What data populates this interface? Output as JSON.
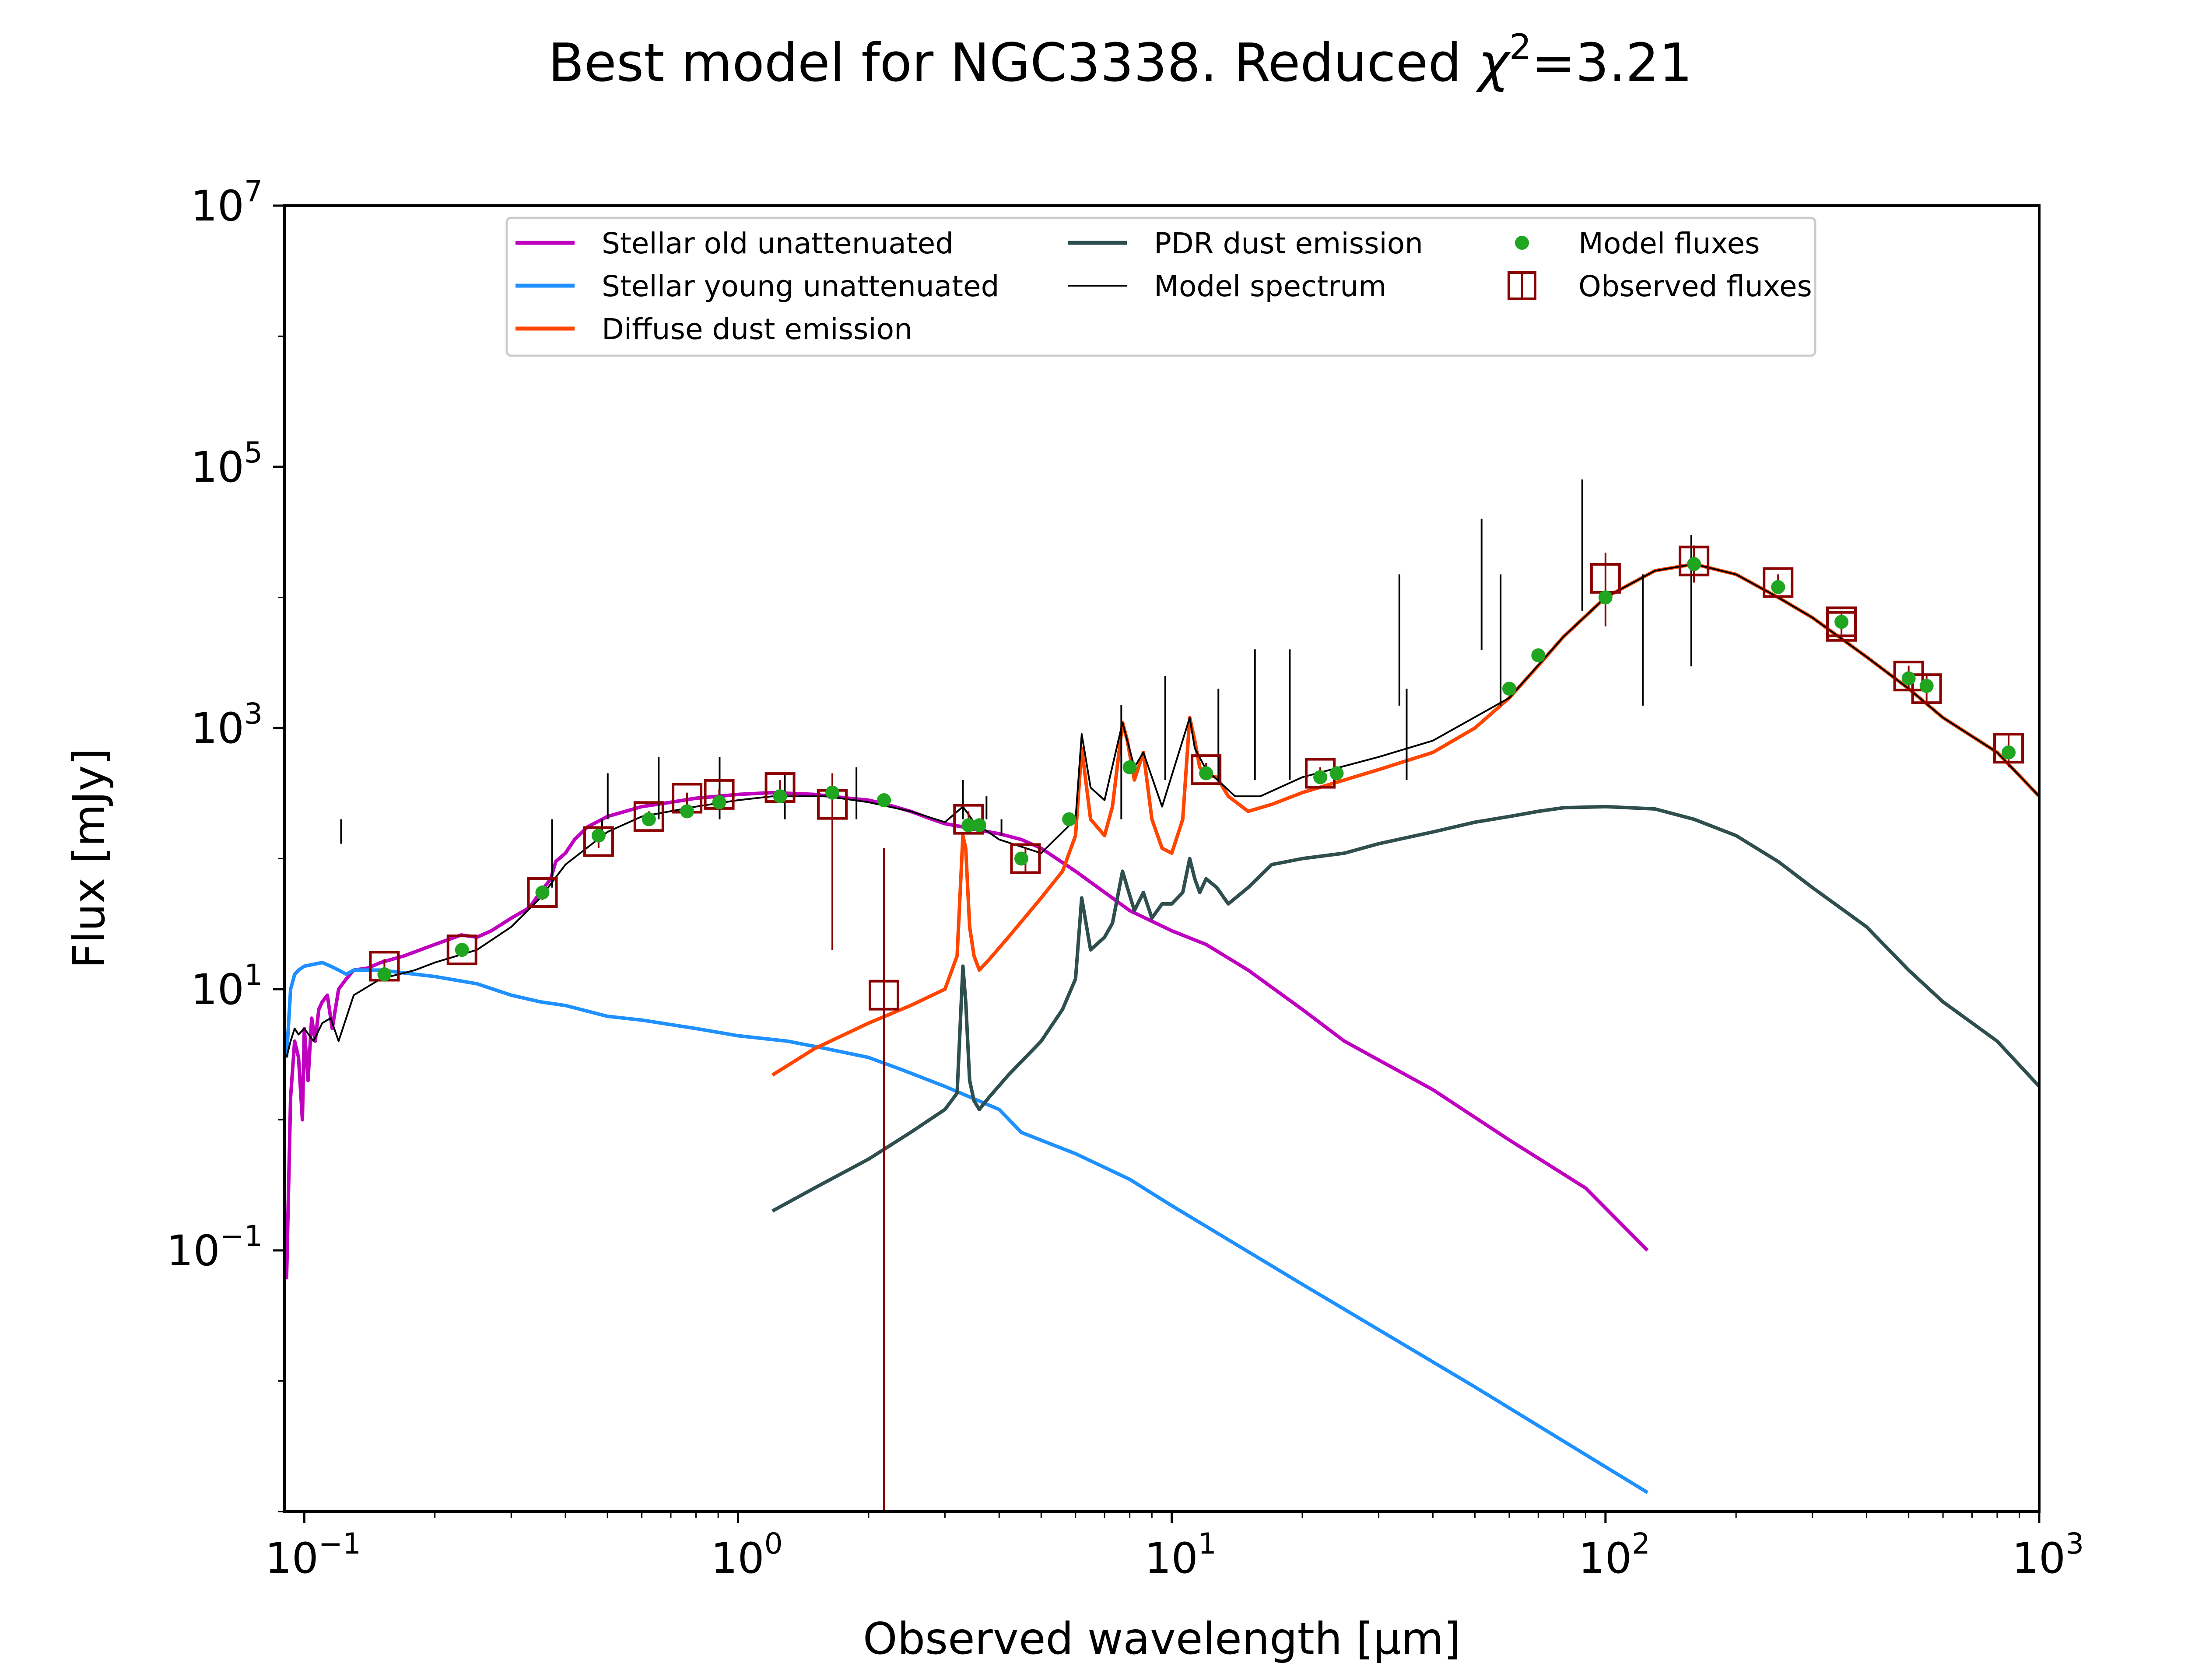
{
  "title": "Best model for NGC3338. Reduced χ²=3.21",
  "title_parts": {
    "prefix": "Best model for NGC3338. Reduced ",
    "chi": "χ",
    "sup": "2",
    "suffix": "=3.21"
  },
  "chart_data": {
    "type": "line",
    "xlabel": "Observed wavelength [μm]",
    "ylabel": "Flux [mJy]",
    "xscale": "log",
    "yscale": "log",
    "xlim": [
      0.09,
      1000
    ],
    "ylim": [
      0.001,
      10000000
    ],
    "grid": false,
    "legend_position": "top-center",
    "x_ticks": [
      {
        "value": 0.1,
        "base": "10",
        "exp": "−1"
      },
      {
        "value": 1,
        "base": "10",
        "exp": "0"
      },
      {
        "value": 10,
        "base": "10",
        "exp": "1"
      },
      {
        "value": 100,
        "base": "10",
        "exp": "2"
      },
      {
        "value": 1000,
        "base": "10",
        "exp": "3"
      }
    ],
    "y_ticks": [
      {
        "value": 0.1,
        "base": "10",
        "exp": "−1"
      },
      {
        "value": 10,
        "base": "10",
        "exp": "1"
      },
      {
        "value": 1000,
        "base": "10",
        "exp": "3"
      },
      {
        "value": 100000,
        "base": "10",
        "exp": "5"
      },
      {
        "value": 10000000,
        "base": "10",
        "exp": "7"
      }
    ],
    "colors": {
      "old": "#bf00bf",
      "young": "#1e90ff",
      "dust": "#ff4500",
      "pdr": "#2f4f4f",
      "model": "#000000",
      "model_fluxes": "#1fa51f",
      "observed": "#8b0000"
    },
    "legend": [
      {
        "label": "Stellar old unattenuated",
        "kind": "line",
        "color_key": "old"
      },
      {
        "label": "Stellar young unattenuated",
        "kind": "line",
        "color_key": "young"
      },
      {
        "label": "Diffuse dust emission",
        "kind": "line",
        "color_key": "dust"
      },
      {
        "label": "PDR dust emission",
        "kind": "line",
        "color_key": "pdr"
      },
      {
        "label": "Model spectrum",
        "kind": "thinline",
        "color_key": "model"
      },
      {
        "label": "Model fluxes",
        "kind": "dot",
        "color_key": "model_fluxes"
      },
      {
        "label": "Observed fluxes",
        "kind": "square",
        "color_key": "observed"
      }
    ],
    "series": [
      {
        "name": "Stellar old unattenuated",
        "color_key": "old",
        "x": [
          0.091,
          0.093,
          0.095,
          0.097,
          0.099,
          0.1,
          0.102,
          0.104,
          0.106,
          0.108,
          0.11,
          0.113,
          0.116,
          0.12,
          0.125,
          0.13,
          0.14,
          0.15,
          0.17,
          0.2,
          0.23,
          0.25,
          0.27,
          0.3,
          0.33,
          0.35,
          0.37,
          0.38,
          0.4,
          0.42,
          0.45,
          0.5,
          0.55,
          0.6,
          0.7,
          0.8,
          0.9,
          1.0,
          1.2,
          1.5,
          1.8,
          2.0,
          2.2,
          2.5,
          2.8,
          3.0,
          3.3,
          3.6,
          4.0,
          4.5,
          5.0,
          6.0,
          8.0,
          10.0,
          12.0,
          15.0,
          20.0,
          25.0,
          40.0,
          60.0,
          90.0,
          125.0
        ],
        "y": [
          0.06,
          1.5,
          4.0,
          3.0,
          1.0,
          5.0,
          2.0,
          6.0,
          4.0,
          7.0,
          8.0,
          9.0,
          5.0,
          10.0,
          12.0,
          14.0,
          14.5,
          16.0,
          18.0,
          22.0,
          26.0,
          25.0,
          28.0,
          35.0,
          42.0,
          55.0,
          70.0,
          95.0,
          110.0,
          140.0,
          175.0,
          210.0,
          230.0,
          250.0,
          270.0,
          290.0,
          300.0,
          310.0,
          320.0,
          310.0,
          290.0,
          280.0,
          260.0,
          230.0,
          200.0,
          185.0,
          175.0,
          165.0,
          155.0,
          140.0,
          120.0,
          80.0,
          40.0,
          28.0,
          22.0,
          14.0,
          7.0,
          4.0,
          1.7,
          0.7,
          0.3,
          0.1
        ]
      },
      {
        "name": "Stellar young unattenuated",
        "color_key": "young",
        "x": [
          0.091,
          0.093,
          0.095,
          0.097,
          0.1,
          0.105,
          0.11,
          0.115,
          0.12,
          0.125,
          0.13,
          0.15,
          0.2,
          0.25,
          0.3,
          0.35,
          0.4,
          0.5,
          0.6,
          0.8,
          1.0,
          1.3,
          1.6,
          2.0,
          2.4,
          3.0,
          4.0,
          4.5,
          6.0,
          8.0,
          10.0,
          20.0,
          50.0,
          100.0,
          125.0
        ],
        "y": [
          3.0,
          10.0,
          13.0,
          14.0,
          15.0,
          15.5,
          16.0,
          15.0,
          14.0,
          13.0,
          14.0,
          14.0,
          12.5,
          11.0,
          9.0,
          8.0,
          7.5,
          6.2,
          5.8,
          5.0,
          4.4,
          4.0,
          3.5,
          3.0,
          2.4,
          1.8,
          1.2,
          0.8,
          0.55,
          0.35,
          0.22,
          0.055,
          0.009,
          0.0022,
          0.0014
        ]
      },
      {
        "name": "Diffuse dust emission",
        "color_key": "dust",
        "x": [
          1.2,
          1.5,
          2.0,
          2.5,
          3.0,
          3.2,
          3.3,
          3.35,
          3.42,
          3.5,
          3.6,
          3.8,
          4.2,
          5.0,
          5.6,
          6.0,
          6.2,
          6.5,
          7.0,
          7.3,
          7.7,
          7.9,
          8.2,
          8.6,
          9.0,
          9.5,
          10.0,
          10.6,
          11.0,
          11.3,
          11.6,
          12.0,
          12.7,
          13.5,
          15.0,
          17.0,
          20.0,
          25.0,
          30.0,
          40.0,
          50.0,
          60.0,
          70.0,
          80.0,
          100.0,
          130.0,
          160.0,
          200.0,
          250.0,
          300.0,
          400.0,
          500.0,
          600.0,
          800.0,
          1000.0
        ],
        "y": [
          2.2,
          3.5,
          5.5,
          7.5,
          10.0,
          18.0,
          150.0,
          120.0,
          30.0,
          18.0,
          14.0,
          17.0,
          25.0,
          50.0,
          80.0,
          150.0,
          700.0,
          200.0,
          150.0,
          250.0,
          1100.0,
          800.0,
          400.0,
          650.0,
          200.0,
          120.0,
          110.0,
          200.0,
          1200.0,
          800.0,
          500.0,
          440.0,
          420.0,
          300.0,
          230.0,
          260.0,
          320.0,
          400.0,
          480.0,
          650.0,
          1000.0,
          1700.0,
          3000.0,
          5000.0,
          10000.0,
          16000.0,
          18000.0,
          15000.0,
          10000.0,
          7000.0,
          3500.0,
          2000.0,
          1200.0,
          650.0,
          300.0
        ]
      },
      {
        "name": "PDR dust emission",
        "color_key": "pdr",
        "x": [
          1.2,
          1.5,
          2.0,
          2.5,
          3.0,
          3.2,
          3.3,
          3.35,
          3.42,
          3.5,
          3.6,
          3.8,
          4.2,
          5.0,
          5.6,
          6.0,
          6.2,
          6.5,
          7.0,
          7.3,
          7.7,
          7.9,
          8.2,
          8.6,
          9.0,
          9.5,
          10.0,
          10.6,
          11.0,
          11.3,
          11.6,
          12.0,
          12.7,
          13.5,
          15.0,
          17.0,
          20.0,
          25.0,
          30.0,
          40.0,
          50.0,
          60.0,
          70.0,
          80.0,
          100.0,
          130.0,
          160.0,
          200.0,
          250.0,
          300.0,
          400.0,
          500.0,
          600.0,
          800.0,
          1000.0
        ],
        "y": [
          0.2,
          0.3,
          0.5,
          0.8,
          1.2,
          1.6,
          15.0,
          8.0,
          2.0,
          1.4,
          1.2,
          1.5,
          2.2,
          4.0,
          7.0,
          12.0,
          50.0,
          20.0,
          25.0,
          32.0,
          80.0,
          60.0,
          40.0,
          55.0,
          35.0,
          45.0,
          45.0,
          55.0,
          100.0,
          70.0,
          55.0,
          70.0,
          60.0,
          45.0,
          60.0,
          90.0,
          100.0,
          110.0,
          130.0,
          160.0,
          190.0,
          210.0,
          230.0,
          245.0,
          250.0,
          240.0,
          200.0,
          150.0,
          95.0,
          60.0,
          30.0,
          14.0,
          8.0,
          4.0,
          1.8
        ]
      },
      {
        "name": "Model spectrum",
        "color_key": "model",
        "x": [
          0.091,
          0.093,
          0.095,
          0.097,
          0.1,
          0.105,
          0.11,
          0.115,
          0.12,
          0.13,
          0.15,
          0.18,
          0.2,
          0.25,
          0.3,
          0.35,
          0.4,
          0.5,
          0.6,
          0.8,
          1.0,
          1.2,
          1.6,
          2.0,
          2.5,
          3.0,
          3.3,
          3.5,
          4.0,
          5.0,
          6.0,
          6.2,
          6.5,
          7.0,
          7.7,
          8.2,
          8.6,
          9.5,
          11.0,
          11.3,
          12.0,
          14.0,
          16.0,
          20.0,
          30.0,
          40.0,
          60.0,
          80.0,
          100.0,
          130.0,
          160.0,
          200.0,
          250.0,
          300.0,
          400.0,
          500.0,
          600.0,
          800.0,
          1000.0
        ],
        "y": [
          3.0,
          4.0,
          5.0,
          4.5,
          5.0,
          4.0,
          5.5,
          6.0,
          4.0,
          9.0,
          12.0,
          14.0,
          16.0,
          20.0,
          30.0,
          50.0,
          90.0,
          160.0,
          210.0,
          250.0,
          280.0,
          300.0,
          300.0,
          270.0,
          230.0,
          190.0,
          250.0,
          190.0,
          140.0,
          110.0,
          200.0,
          900.0,
          350.0,
          280.0,
          1100.0,
          500.0,
          650.0,
          250.0,
          1200.0,
          700.0,
          480.0,
          300.0,
          300.0,
          420.0,
          600.0,
          800.0,
          1700.0,
          5000.0,
          10000.0,
          16000.0,
          18000.0,
          15000.0,
          10000.0,
          7000.0,
          3500.0,
          2000.0,
          1200.0,
          650.0,
          300.0
        ]
      }
    ],
    "emission_lines": {
      "x": [
        0.1216,
        0.3727,
        0.4861,
        0.5007,
        0.6563,
        0.9069,
        1.282,
        1.875,
        2.166,
        3.3,
        3.74,
        4.05,
        7.65,
        9.66,
        12.81,
        15.55,
        18.71,
        33.48,
        34.8,
        51.8,
        57.3,
        88.4,
        121.9,
        157.7
      ],
      "y": [
        130.0,
        60.0,
        160.0,
        450.0,
        600.0,
        600.0,
        450.0,
        500.0,
        200.0,
        400.0,
        300.0,
        150.0,
        1500.0,
        2500.0,
        2000.0,
        4000.0,
        4000.0,
        15000.0,
        2000.0,
        40000.0,
        15000.0,
        80000.0,
        15000.0,
        30000.0
      ]
    },
    "model_fluxes": {
      "x": [
        0.153,
        0.231,
        0.354,
        0.477,
        0.623,
        0.763,
        0.905,
        1.25,
        1.65,
        2.17,
        3.4,
        3.6,
        4.5,
        5.8,
        8.0,
        12.0,
        22.0,
        24.0,
        60.0,
        70.0,
        100.0,
        160.0,
        250.0,
        350.0,
        500.0,
        550.0,
        850.0
      ],
      "y": [
        13.0,
        20.0,
        55.0,
        150.0,
        200.0,
        230.0,
        270.0,
        300.0,
        320.0,
        280.0,
        180.0,
        180.0,
        100.0,
        200.0,
        500.0,
        450.0,
        420.0,
        450.0,
        2000.0,
        3600.0,
        10000.0,
        18000.0,
        12000.0,
        6500.0,
        2400.0,
        2100.0,
        650.0
      ]
    },
    "observed_fluxes": {
      "x": [
        0.153,
        0.231,
        0.354,
        0.477,
        0.623,
        0.763,
        0.905,
        1.25,
        1.65,
        2.17,
        3.4,
        4.6,
        12.0,
        22.0,
        100.0,
        160.0,
        250.0,
        350.0,
        350.0,
        500.0,
        550.0,
        850.0
      ],
      "y": [
        15.0,
        20.0,
        55.0,
        135.0,
        210.0,
        290.0,
        310.0,
        350.0,
        260.0,
        9.0,
        200.0,
        100.0,
        480.0,
        450.0,
        14000.0,
        19000.0,
        13000.0,
        6500.0,
        6000.0,
        2500.0,
        2000.0,
        700.0
      ],
      "err_low": [
        13.0,
        18.0,
        48.0,
        120.0,
        190.0,
        260.0,
        280.0,
        300.0,
        20.0,
        0.001,
        170.0,
        80.0,
        420.0,
        400.0,
        6000.0,
        13000.0,
        11000.0,
        5500.0,
        5200.0,
        2000.0,
        1500.0,
        500.0
      ],
      "err_high": [
        17.0,
        22.0,
        62.0,
        150.0,
        230.0,
        320.0,
        340.0,
        400.0,
        450.0,
        120.0,
        230.0,
        120.0,
        540.0,
        500.0,
        22000.0,
        25000.0,
        15000.0,
        7500.0,
        6800.0,
        3000.0,
        2600.0,
        900.0
      ]
    }
  }
}
